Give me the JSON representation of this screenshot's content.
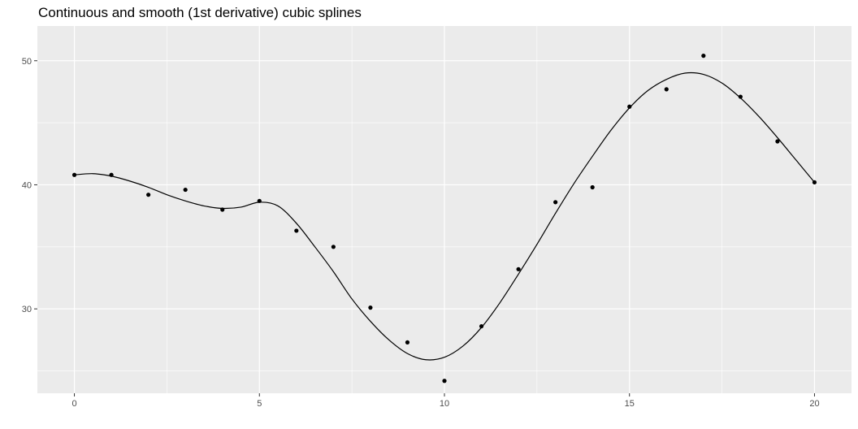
{
  "chart_data": {
    "type": "scatter",
    "title": "Continuous and smooth (1st derivative) cubic splines",
    "xlabel": "",
    "ylabel": "",
    "xlim": [
      -1,
      21
    ],
    "ylim": [
      23.2,
      52.8
    ],
    "x_ticks": [
      0,
      5,
      10,
      15,
      20
    ],
    "y_ticks": [
      30,
      40,
      50
    ],
    "grid": true,
    "legend": "none",
    "series": [
      {
        "type": "scatter",
        "x": [
          0,
          1,
          2,
          3,
          4,
          5,
          6,
          7,
          8,
          9,
          10,
          11,
          12,
          13,
          14,
          15,
          16,
          17,
          18,
          19,
          20
        ],
        "y": [
          40.8,
          40.8,
          39.2,
          39.6,
          38.0,
          38.7,
          36.3,
          35.0,
          30.1,
          27.3,
          24.2,
          28.6,
          33.2,
          38.6,
          39.8,
          46.3,
          47.7,
          50.4,
          47.1,
          43.5,
          40.2
        ]
      },
      {
        "type": "line",
        "x": [
          0,
          0.5,
          1,
          1.5,
          2,
          2.5,
          3,
          3.5,
          4,
          4.5,
          5,
          5.5,
          6,
          6.5,
          7,
          7.5,
          8,
          8.5,
          9,
          9.5,
          10,
          10.5,
          11,
          11.5,
          12,
          12.5,
          13,
          13.5,
          14,
          14.5,
          15,
          15.5,
          16,
          16.5,
          17,
          17.5,
          18,
          18.5,
          19,
          19.5,
          20
        ],
        "y": [
          40.8,
          40.9,
          40.7,
          40.3,
          39.8,
          39.2,
          38.7,
          38.3,
          38.1,
          38.2,
          38.6,
          38.3,
          36.9,
          35.0,
          33.0,
          30.8,
          29.0,
          27.5,
          26.4,
          25.9,
          26.1,
          27.0,
          28.5,
          30.5,
          32.8,
          35.2,
          37.7,
          40.1,
          42.3,
          44.4,
          46.2,
          47.6,
          48.5,
          49.0,
          48.9,
          48.2,
          47.0,
          45.5,
          43.8,
          42.0,
          40.2
        ]
      }
    ],
    "colors": {
      "panel_background": "#ebebeb",
      "major_grid": "#ffffff",
      "minor_grid": "#f5f5f5",
      "points": "#000000",
      "line": "#000000"
    }
  }
}
